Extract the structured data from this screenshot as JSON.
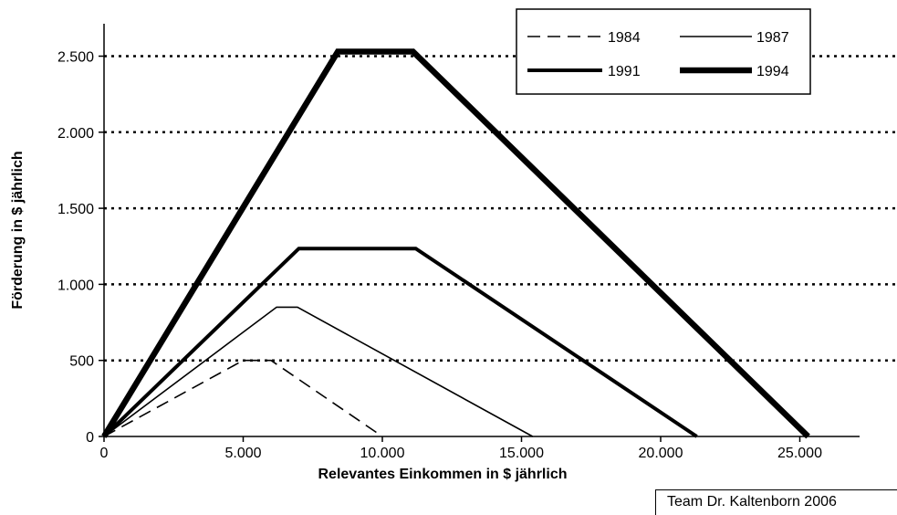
{
  "chart_data": {
    "type": "line",
    "title": "",
    "xlabel": "Relevantes Einkommen in $ jährlich",
    "ylabel": "Förderung in $ jährlich",
    "xlim": [
      0,
      27000
    ],
    "ylim": [
      0,
      2500
    ],
    "x_ticks": [
      0,
      5000,
      10000,
      15000,
      20000,
      25000
    ],
    "x_tick_labels": [
      "0",
      "5.000",
      "10.000",
      "15.000",
      "20.000",
      "25.000"
    ],
    "y_ticks": [
      0,
      500,
      1000,
      1500,
      2000,
      2500
    ],
    "y_tick_labels": [
      "0",
      "500",
      "1.000",
      "1.500",
      "2.000",
      "2.500"
    ],
    "grid": {
      "horizontal": true,
      "style": "dotted"
    },
    "legend_position": "top-right",
    "series": [
      {
        "name": "1984",
        "style": "dashed",
        "x": [
          0,
          5000,
          6000,
          10000
        ],
        "y": [
          0,
          500,
          500,
          0
        ]
      },
      {
        "name": "1987",
        "style": "thin",
        "x": [
          0,
          6200,
          6950,
          15400
        ],
        "y": [
          0,
          850,
          850,
          0
        ]
      },
      {
        "name": "1991",
        "style": "thick",
        "x": [
          0,
          7000,
          11200,
          21300
        ],
        "y": [
          0,
          1235,
          1235,
          0
        ]
      },
      {
        "name": "1994",
        "style": "thickest",
        "x": [
          0,
          8400,
          11100,
          25300
        ],
        "y": [
          0,
          2530,
          2530,
          0
        ]
      }
    ]
  },
  "credit": "Team Dr. Kaltenborn 2006"
}
